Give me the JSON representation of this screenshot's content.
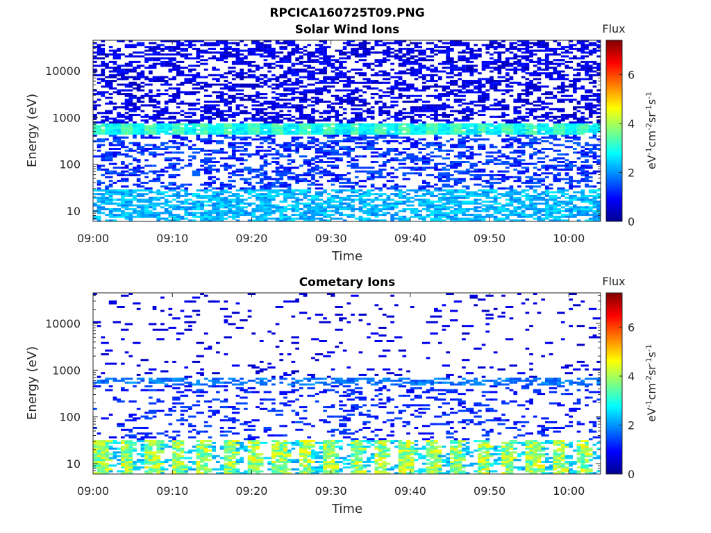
{
  "figure_title": "RPCICA160725T09.PNG",
  "chart_data": [
    {
      "type": "heatmap",
      "title": "Solar Wind Ions",
      "xlabel": "Time",
      "ylabel": "Energy (eV)",
      "x_range": [
        "09:00",
        "10:04"
      ],
      "x_ticks": [
        "09:00",
        "09:10",
        "09:20",
        "09:30",
        "09:40",
        "09:50",
        "10:00"
      ],
      "y_scale": "log",
      "y_range": [
        6,
        45000
      ],
      "y_ticks": [
        10,
        100,
        1000,
        10000
      ],
      "y_tick_labels": [
        "10",
        "100",
        "1000",
        "10000"
      ],
      "colorbar": {
        "label": "Flux",
        "unit": "eV-1cm-2sr-1s-1",
        "range": [
          0,
          7.4
        ],
        "ticks": [
          "0",
          "2",
          "4",
          "6"
        ]
      },
      "description_of_values": "Sparse low-flux (0.5-1.5) counts across 60 eV-40 keV; persistent band near 600 eV with flux ~3, peaking ~3.5 at periodic intervals; flux ~2-2.6 below 30 eV."
    },
    {
      "type": "heatmap",
      "title": "Cometary Ions",
      "xlabel": "Time",
      "ylabel": "Energy (eV)",
      "x_range": [
        "09:00",
        "10:04"
      ],
      "x_ticks": [
        "09:00",
        "09:10",
        "09:20",
        "09:30",
        "09:40",
        "09:50",
        "10:00"
      ],
      "y_scale": "log",
      "y_range": [
        6,
        45000
      ],
      "y_ticks": [
        10,
        100,
        1000,
        10000
      ],
      "y_tick_labels": [
        "10",
        "100",
        "1000",
        "10000"
      ],
      "colorbar": {
        "label": "Flux",
        "unit": "eV-1cm-2sr-1s-1",
        "range": [
          0,
          7.4
        ],
        "ticks": [
          "0",
          "2",
          "4",
          "6"
        ]
      },
      "description_of_values": "Very sparse low flux (~1) above 100 eV; band near 600 eV flux ~1.5-2; strong periodic bursts at 10-30 eV with flux ~3.5-4.7."
    }
  ],
  "colors": {
    "colormap": [
      "#00008f",
      "#0000ff",
      "#0080ff",
      "#00ffff",
      "#80ff80",
      "#ffff00",
      "#ff8000",
      "#ff0000",
      "#800000"
    ]
  }
}
